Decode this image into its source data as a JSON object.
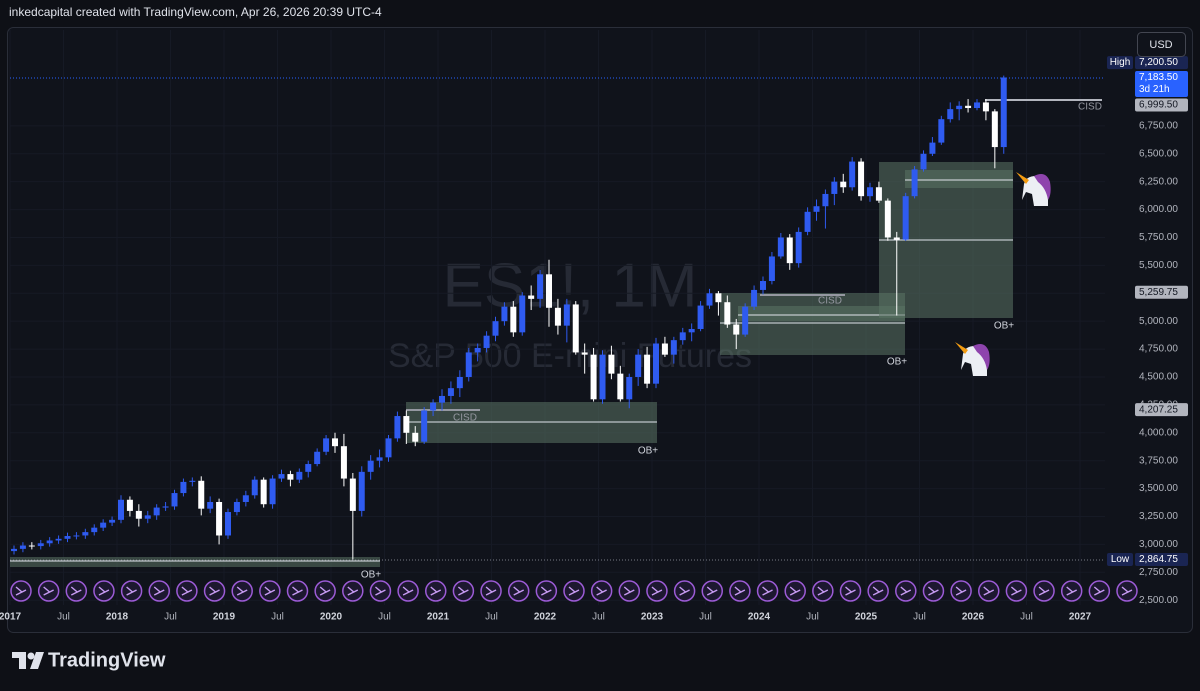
{
  "header": "inkedcapital created with TradingView.com, Apr 26, 2026 20:39 UTC-4",
  "footer": "TradingView",
  "chart_data": {
    "type": "candlestick",
    "symbol": "ES1!, 1M",
    "description": "S&P 500 E-mini Futures",
    "currency": "USD",
    "up_color": "#2f5bf0",
    "down_color": "#ffffff",
    "x": [
      "2017-01",
      "2017-02",
      "2017-03",
      "2017-04",
      "2017-05",
      "2017-06",
      "2017-07",
      "2017-08",
      "2017-09",
      "2017-10",
      "2017-11",
      "2017-12",
      "2018-01",
      "2018-02",
      "2018-03",
      "2018-04",
      "2018-05",
      "2018-06",
      "2018-07",
      "2018-08",
      "2018-09",
      "2018-10",
      "2018-11",
      "2018-12",
      "2019-01",
      "2019-02",
      "2019-03",
      "2019-04",
      "2019-05",
      "2019-06",
      "2019-07",
      "2019-08",
      "2019-09",
      "2019-10",
      "2019-11",
      "2019-12",
      "2020-01",
      "2020-02",
      "2020-03",
      "2020-04",
      "2020-05",
      "2020-06",
      "2020-07",
      "2020-08",
      "2020-09",
      "2020-10",
      "2020-11",
      "2020-12",
      "2021-01",
      "2021-02",
      "2021-03",
      "2021-04",
      "2021-05",
      "2021-06",
      "2021-07",
      "2021-08",
      "2021-09",
      "2021-10",
      "2021-11",
      "2021-12",
      "2022-01",
      "2022-02",
      "2022-03",
      "2022-04",
      "2022-05",
      "2022-06",
      "2022-07",
      "2022-08",
      "2022-09",
      "2022-10",
      "2022-11",
      "2022-12",
      "2023-01",
      "2023-02",
      "2023-03",
      "2023-04",
      "2023-05",
      "2023-06",
      "2023-07",
      "2023-08",
      "2023-09",
      "2023-10",
      "2023-11",
      "2023-12",
      "2024-01",
      "2024-02",
      "2024-03",
      "2024-04",
      "2024-05",
      "2024-06",
      "2024-07",
      "2024-08",
      "2024-09",
      "2024-10",
      "2024-11",
      "2024-12",
      "2025-01",
      "2025-02",
      "2025-03",
      "2025-04",
      "2025-05",
      "2025-06",
      "2025-07",
      "2025-08",
      "2025-09",
      "2025-10",
      "2025-11",
      "2025-12",
      "2026-01",
      "2026-02",
      "2026-03",
      "2026-04"
    ],
    "open": [
      2940,
      2960,
      2990,
      2985,
      3010,
      3035,
      3050,
      3075,
      3080,
      3110,
      3150,
      3195,
      3220,
      3400,
      3300,
      3230,
      3260,
      3330,
      3340,
      3460,
      3560,
      3570,
      3320,
      3380,
      3080,
      3290,
      3380,
      3440,
      3580,
      3360,
      3590,
      3630,
      3580,
      3650,
      3720,
      3830,
      3950,
      3880,
      3590,
      3300,
      3650,
      3750,
      3780,
      3950,
      4150,
      4000,
      3920,
      4200,
      4270,
      4330,
      4400,
      4500,
      4720,
      4760,
      4870,
      5000,
      5130,
      4900,
      5230,
      5200,
      5420,
      5120,
      4960,
      5150,
      4720,
      4700,
      4300,
      4700,
      4530,
      4300,
      4500,
      4700,
      4440,
      4800,
      4700,
      4830,
      4900,
      4930,
      5140,
      5250,
      5170,
      4970,
      4880,
      5130,
      5280,
      5360,
      5580,
      5750,
      5520,
      5800,
      5980,
      6030,
      6140,
      6250,
      6200,
      6430,
      6120,
      6200,
      6080,
      5750,
      5730,
      6120,
      6360,
      6500,
      6600,
      6810,
      6900,
      6930,
      6910,
      6960,
      6880,
      6560
    ],
    "high": [
      2990,
      3020,
      3020,
      3040,
      3065,
      3080,
      3105,
      3110,
      3140,
      3180,
      3225,
      3250,
      3440,
      3430,
      3360,
      3300,
      3360,
      3380,
      3490,
      3590,
      3600,
      3610,
      3430,
      3410,
      3320,
      3410,
      3480,
      3610,
      3600,
      3620,
      3670,
      3660,
      3680,
      3750,
      3860,
      3980,
      4000,
      3990,
      3640,
      3700,
      3800,
      3850,
      3980,
      4190,
      4200,
      4060,
      4230,
      4300,
      4390,
      4460,
      4560,
      4760,
      4800,
      4910,
      5040,
      5170,
      5180,
      5260,
      5320,
      5460,
      5550,
      5200,
      5200,
      5180,
      4800,
      4760,
      4740,
      4780,
      4600,
      4530,
      4750,
      4770,
      4850,
      4860,
      4860,
      4940,
      4980,
      5180,
      5290,
      5270,
      5230,
      5020,
      5160,
      5320,
      5400,
      5620,
      5790,
      5780,
      5840,
      6020,
      6090,
      6180,
      6290,
      6320,
      6470,
      6460,
      6240,
      6250,
      6100,
      5800,
      6150,
      6390,
      6530,
      6650,
      6840,
      6960,
      6970,
      6990,
      6990,
      6990,
      6900,
      7200.5
    ],
    "low": [
      2910,
      2930,
      2955,
      2955,
      2980,
      3005,
      3020,
      3045,
      3050,
      3080,
      3120,
      3165,
      3190,
      3250,
      3160,
      3190,
      3220,
      3300,
      3310,
      3430,
      3520,
      3260,
      3280,
      3000,
      3050,
      3260,
      3340,
      3410,
      3330,
      3320,
      3560,
      3520,
      3550,
      3600,
      3700,
      3800,
      3820,
      3520,
      2864.75,
      3250,
      3580,
      3690,
      3740,
      3920,
      3900,
      3880,
      3900,
      4150,
      4200,
      4260,
      4320,
      4460,
      4640,
      4720,
      4820,
      4960,
      4860,
      4870,
      5100,
      5120,
      4950,
      4880,
      4810,
      4700,
      4530,
      4280,
      4260,
      4480,
      4280,
      4220,
      4420,
      4400,
      4400,
      4680,
      4620,
      4790,
      4820,
      4910,
      5110,
      5050,
      4940,
      4750,
      4860,
      5100,
      5240,
      5330,
      5560,
      5460,
      5480,
      5770,
      5900,
      5830,
      6040,
      6150,
      6170,
      6080,
      6070,
      6060,
      5720,
      5050,
      5720,
      6100,
      6340,
      6480,
      6580,
      6780,
      6800,
      6870,
      6890,
      6800,
      6370,
      6500
    ],
    "close": [
      2960,
      2990,
      2985,
      3010,
      3035,
      3050,
      3075,
      3080,
      3110,
      3150,
      3195,
      3220,
      3400,
      3300,
      3230,
      3260,
      3330,
      3340,
      3460,
      3560,
      3570,
      3320,
      3380,
      3080,
      3290,
      3380,
      3440,
      3580,
      3360,
      3590,
      3630,
      3580,
      3650,
      3720,
      3830,
      3950,
      3880,
      3590,
      3300,
      3650,
      3750,
      3780,
      3950,
      4150,
      4000,
      3920,
      4200,
      4270,
      4330,
      4400,
      4500,
      4720,
      4760,
      4870,
      5000,
      5130,
      4900,
      5230,
      5200,
      5420,
      5120,
      4960,
      5150,
      4720,
      4700,
      4300,
      4700,
      4530,
      4300,
      4500,
      4700,
      4440,
      4800,
      4700,
      4830,
      4900,
      4930,
      5140,
      5250,
      5170,
      4970,
      4880,
      5130,
      5280,
      5360,
      5580,
      5750,
      5520,
      5800,
      5980,
      6030,
      6140,
      6250,
      6200,
      6430,
      6120,
      6200,
      6080,
      5750,
      5730,
      6120,
      6360,
      6500,
      6600,
      6810,
      6900,
      6930,
      6910,
      6960,
      6880,
      6560,
      7183.5
    ],
    "ylim": [
      2233,
      7609
    ],
    "yticks": [
      {
        "value": 2500,
        "label": "2,500.00"
      },
      {
        "value": 2750,
        "label": "2,750.00"
      },
      {
        "value": 3000,
        "label": "3,000.00"
      },
      {
        "value": 3250,
        "label": "3,250.00"
      },
      {
        "value": 3500,
        "label": "3,500.00"
      },
      {
        "value": 3750,
        "label": "3,750.00"
      },
      {
        "value": 4000,
        "label": "4,000.00"
      },
      {
        "value": 4250,
        "label": "4,250.00"
      },
      {
        "value": 4500,
        "label": "4,500.00"
      },
      {
        "value": 4750,
        "label": "4,750.00"
      },
      {
        "value": 5000,
        "label": "5,000.00"
      },
      {
        "value": 5250,
        "label": "5,250.00"
      },
      {
        "value": 5500,
        "label": "5,500.00"
      },
      {
        "value": 5750,
        "label": "5,750.00"
      },
      {
        "value": 6000,
        "label": "6,000.00"
      },
      {
        "value": 6250,
        "label": "6,250.00"
      },
      {
        "value": 6500,
        "label": "6,500.00"
      },
      {
        "value": 6750,
        "label": "6,750.00"
      }
    ],
    "xticks": [
      {
        "value": "2017-01",
        "label": "2017"
      },
      {
        "value": "2017-07",
        "label": "Jul"
      },
      {
        "value": "2018-01",
        "label": "2018"
      },
      {
        "value": "2018-07",
        "label": "Jul"
      },
      {
        "value": "2019-01",
        "label": "2019"
      },
      {
        "value": "2019-07",
        "label": "Jul"
      },
      {
        "value": "2020-01",
        "label": "2020"
      },
      {
        "value": "2020-07",
        "label": "Jul"
      },
      {
        "value": "2021-01",
        "label": "2021"
      },
      {
        "value": "2021-07",
        "label": "Jul"
      },
      {
        "value": "2022-01",
        "label": "2022"
      },
      {
        "value": "2022-07",
        "label": "Jul"
      },
      {
        "value": "2023-01",
        "label": "2023"
      },
      {
        "value": "2023-07",
        "label": "Jul"
      },
      {
        "value": "2024-01",
        "label": "2024"
      },
      {
        "value": "2024-07",
        "label": "Jul"
      },
      {
        "value": "2025-01",
        "label": "2025"
      },
      {
        "value": "2025-07",
        "label": "Jul"
      },
      {
        "value": "2026-01",
        "label": "2026"
      },
      {
        "value": "2026-07",
        "label": "Jul"
      },
      {
        "value": "2027-01",
        "label": "2027"
      }
    ],
    "price_labels": [
      {
        "tag": "High",
        "value": 7200.5,
        "label": "7,200.50",
        "color": "#1a2553"
      },
      {
        "value": 7183.5,
        "label": "7,183.50",
        "countdown": "3d 21h",
        "color": "#2962ff"
      },
      {
        "value": 6999.5,
        "label": "6,999.50",
        "color": "#b2b5be"
      },
      {
        "value": 5259.75,
        "label": "5,259.75",
        "color": "#b2b5be"
      },
      {
        "value": 4207.25,
        "label": "4,207.25",
        "color": "#b2b5be"
      },
      {
        "tag": "Low",
        "value": 2864.75,
        "label": "2,864.75",
        "color": "#1a2553"
      }
    ],
    "annotations": [
      "CISD",
      "CISD",
      "CISD",
      "OB+",
      "OB+",
      "OB+",
      "OB+"
    ]
  }
}
